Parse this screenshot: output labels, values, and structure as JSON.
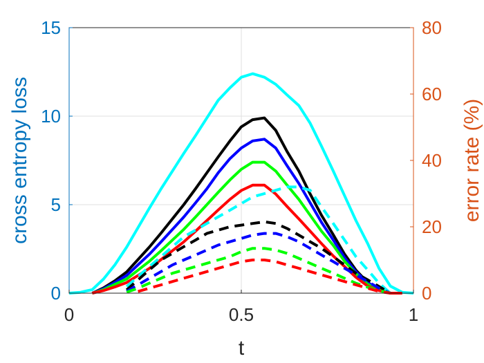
{
  "chart_data": {
    "type": "line",
    "xlabel": "t",
    "ylabel_left": "cross entropy loss",
    "ylabel_right": "error rate (%)",
    "xlim": [
      0,
      1
    ],
    "ylim_left": [
      0,
      15
    ],
    "ylim_right": [
      0,
      80
    ],
    "xticks": [
      0,
      0.5,
      1
    ],
    "xtick_labels": [
      "0",
      "0.5",
      "1"
    ],
    "yticks_left": [
      0,
      5,
      10,
      15
    ],
    "ytick_labels_left": [
      "0",
      "5",
      "10",
      "15"
    ],
    "yticks_right": [
      0,
      20,
      40,
      60,
      80
    ],
    "ytick_labels_right": [
      "0",
      "20",
      "40",
      "60",
      "80"
    ],
    "grid": true,
    "colors": {
      "left_axis": "#0072BD",
      "right_axis": "#D95319",
      "cyan": "#00FFFF",
      "black": "#000000",
      "blue": "#0000FF",
      "green": "#00FF00",
      "red": "#FF0000"
    },
    "series": [
      {
        "color": "cyan",
        "style": "solid",
        "axis": "left",
        "x": [
          0,
          0.033,
          0.067,
          0.1,
          0.133,
          0.167,
          0.2,
          0.233,
          0.267,
          0.3,
          0.333,
          0.367,
          0.4,
          0.433,
          0.467,
          0.5,
          0.533,
          0.567,
          0.6,
          0.633,
          0.667,
          0.7,
          0.733,
          0.767,
          0.8,
          0.833,
          0.867,
          0.9,
          0.933,
          0.967,
          1.0
        ],
        "y": [
          0,
          0.05,
          0.2,
          0.8,
          1.6,
          2.6,
          3.7,
          4.8,
          5.9,
          6.9,
          7.9,
          8.9,
          9.9,
          10.9,
          11.6,
          12.2,
          12.4,
          12.2,
          11.8,
          11.2,
          10.6,
          9.6,
          8.3,
          6.9,
          5.5,
          4.1,
          2.8,
          1.4,
          0.4,
          0.05,
          0
        ]
      },
      {
        "color": "black",
        "style": "solid",
        "axis": "left",
        "x": [
          0.067,
          0.1,
          0.133,
          0.167,
          0.2,
          0.233,
          0.267,
          0.3,
          0.333,
          0.367,
          0.4,
          0.433,
          0.467,
          0.5,
          0.533,
          0.567,
          0.6,
          0.633,
          0.667,
          0.7,
          0.733,
          0.767,
          0.8,
          0.833,
          0.867,
          0.9,
          0.933,
          0.967
        ],
        "y": [
          0,
          0.3,
          0.7,
          1.2,
          1.9,
          2.6,
          3.4,
          4.2,
          5.0,
          5.9,
          6.8,
          7.7,
          8.6,
          9.4,
          9.8,
          9.9,
          9.2,
          8.0,
          6.9,
          5.6,
          4.4,
          3.3,
          2.2,
          1.3,
          0.6,
          0.2,
          0,
          0
        ]
      },
      {
        "color": "blue",
        "style": "solid",
        "axis": "left",
        "x": [
          0.067,
          0.1,
          0.133,
          0.167,
          0.2,
          0.233,
          0.267,
          0.3,
          0.333,
          0.367,
          0.4,
          0.433,
          0.467,
          0.5,
          0.533,
          0.567,
          0.6,
          0.633,
          0.667,
          0.7,
          0.733,
          0.767,
          0.8,
          0.833,
          0.867,
          0.9,
          0.933,
          0.967
        ],
        "y": [
          0,
          0.25,
          0.6,
          1.0,
          1.6,
          2.2,
          2.9,
          3.6,
          4.3,
          5.1,
          5.9,
          6.8,
          7.6,
          8.2,
          8.6,
          8.7,
          8.2,
          7.2,
          6.2,
          5.1,
          4.0,
          3.0,
          2.0,
          1.2,
          0.6,
          0.2,
          0,
          0
        ]
      },
      {
        "color": "green",
        "style": "solid",
        "axis": "left",
        "x": [
          0.067,
          0.1,
          0.133,
          0.167,
          0.2,
          0.233,
          0.267,
          0.3,
          0.333,
          0.367,
          0.4,
          0.433,
          0.467,
          0.5,
          0.533,
          0.567,
          0.6,
          0.633,
          0.667,
          0.7,
          0.733,
          0.767,
          0.8,
          0.833,
          0.867,
          0.9,
          0.933,
          0.967
        ],
        "y": [
          0,
          0.2,
          0.5,
          0.8,
          1.3,
          1.8,
          2.4,
          3.0,
          3.6,
          4.3,
          5.0,
          5.7,
          6.4,
          7.0,
          7.4,
          7.4,
          6.9,
          6.1,
          5.3,
          4.4,
          3.5,
          2.7,
          1.8,
          1.1,
          0.5,
          0.2,
          0,
          0
        ]
      },
      {
        "color": "red",
        "style": "solid",
        "axis": "left",
        "x": [
          0.067,
          0.1,
          0.133,
          0.167,
          0.2,
          0.233,
          0.267,
          0.3,
          0.333,
          0.367,
          0.4,
          0.433,
          0.467,
          0.5,
          0.533,
          0.567,
          0.6,
          0.633,
          0.667,
          0.7,
          0.733,
          0.767,
          0.8,
          0.833,
          0.867,
          0.9,
          0.933,
          0.967
        ],
        "y": [
          0,
          0.15,
          0.35,
          0.6,
          1.0,
          1.4,
          1.9,
          2.4,
          2.9,
          3.5,
          4.1,
          4.7,
          5.3,
          5.8,
          6.1,
          6.1,
          5.6,
          4.9,
          4.2,
          3.5,
          2.8,
          2.1,
          1.5,
          0.9,
          0.4,
          0.15,
          0,
          0
        ]
      },
      {
        "color": "cyan",
        "style": "dashed",
        "axis": "right",
        "x": [
          0.167,
          0.2,
          0.233,
          0.267,
          0.3,
          0.333,
          0.367,
          0.4,
          0.433,
          0.467,
          0.5,
          0.533,
          0.567,
          0.6,
          0.633,
          0.667,
          0.7,
          0.733,
          0.767,
          0.8,
          0.833,
          0.867,
          0.9,
          0.933
        ],
        "y": [
          2,
          5,
          8,
          11,
          14,
          17,
          19,
          21,
          23,
          25,
          27,
          29,
          30,
          31,
          32,
          32,
          31,
          26,
          21,
          16,
          11,
          7,
          3,
          0
        ]
      },
      {
        "color": "black",
        "style": "dashed",
        "axis": "right",
        "x": [
          0.167,
          0.2,
          0.233,
          0.267,
          0.3,
          0.333,
          0.367,
          0.4,
          0.433,
          0.467,
          0.5,
          0.533,
          0.567,
          0.6,
          0.633,
          0.667,
          0.7,
          0.733,
          0.767,
          0.8,
          0.833,
          0.867,
          0.9,
          0.933
        ],
        "y": [
          1,
          4,
          7,
          10,
          12,
          14,
          16,
          18,
          19,
          20,
          20.5,
          21,
          21.5,
          21,
          19.5,
          17.5,
          15.5,
          13.5,
          11,
          8.5,
          6,
          4,
          2,
          0
        ]
      },
      {
        "color": "blue",
        "style": "dashed",
        "axis": "right",
        "x": [
          0.167,
          0.2,
          0.233,
          0.267,
          0.3,
          0.333,
          0.367,
          0.4,
          0.433,
          0.467,
          0.5,
          0.533,
          0.567,
          0.6,
          0.633,
          0.667,
          0.7,
          0.733,
          0.767,
          0.8,
          0.833,
          0.867,
          0.9,
          0.933
        ],
        "y": [
          0.5,
          2.5,
          4.5,
          6.5,
          8.5,
          10,
          11.5,
          13,
          14.5,
          15.5,
          16.5,
          17.5,
          18,
          18,
          17,
          15.5,
          13.5,
          11.5,
          9.5,
          7.5,
          5.5,
          3.5,
          1.5,
          0
        ]
      },
      {
        "color": "green",
        "style": "dashed",
        "axis": "right",
        "x": [
          0.167,
          0.2,
          0.233,
          0.267,
          0.3,
          0.333,
          0.367,
          0.4,
          0.433,
          0.467,
          0.5,
          0.533,
          0.567,
          0.6,
          0.633,
          0.667,
          0.7,
          0.733,
          0.767,
          0.8,
          0.833,
          0.867,
          0.9,
          0.933
        ],
        "y": [
          0.3,
          1.5,
          3,
          4.5,
          6,
          7,
          8,
          9,
          10,
          11,
          12.5,
          13.5,
          13.5,
          13,
          12,
          10.5,
          9,
          7.5,
          6,
          4.5,
          3,
          1.8,
          0.8,
          0
        ]
      },
      {
        "color": "red",
        "style": "dashed",
        "axis": "right",
        "x": [
          0.2,
          0.233,
          0.267,
          0.3,
          0.333,
          0.367,
          0.4,
          0.433,
          0.467,
          0.5,
          0.533,
          0.567,
          0.6,
          0.633,
          0.667,
          0.7,
          0.733,
          0.767,
          0.8,
          0.833,
          0.867,
          0.9,
          0.933
        ],
        "y": [
          0.5,
          1.5,
          2.5,
          3.5,
          4.5,
          5.5,
          6.5,
          7.5,
          8.5,
          9.5,
          10,
          10,
          9.5,
          8.5,
          7.5,
          6.5,
          5.5,
          4.5,
          3.5,
          2.5,
          1.5,
          0.5,
          0
        ]
      }
    ]
  }
}
